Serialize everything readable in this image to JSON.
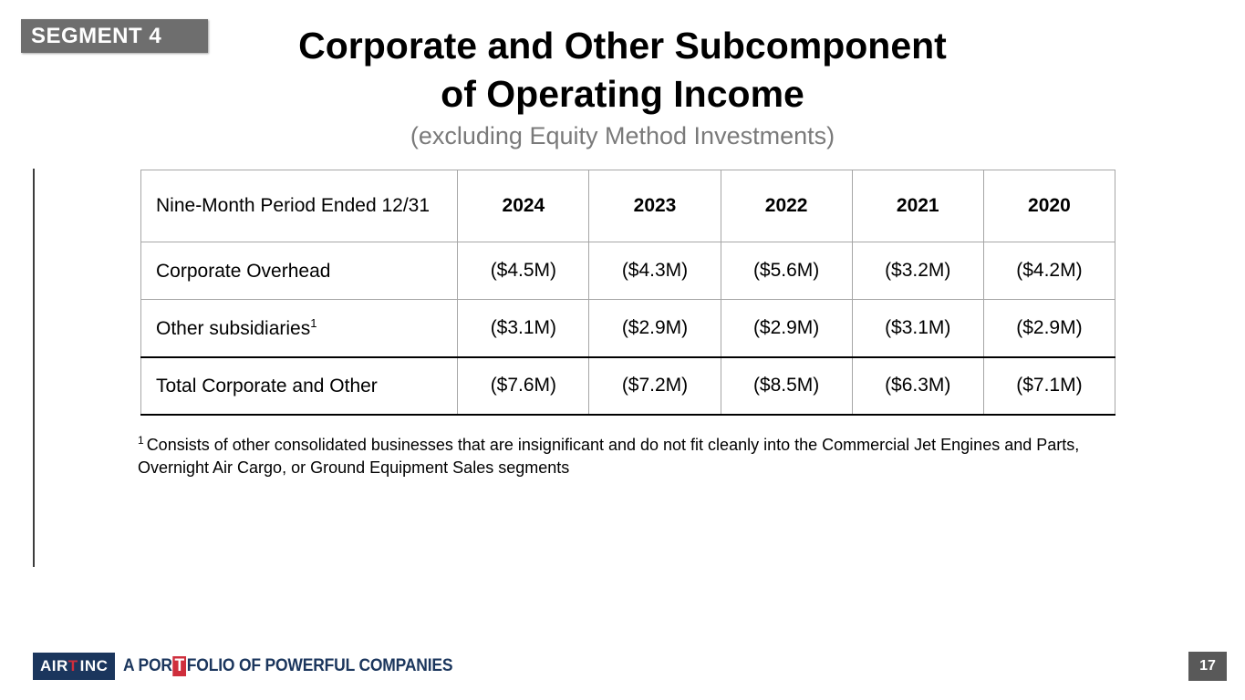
{
  "slide": {
    "badge": "SEGMENT 4",
    "title_line1": "Corporate and Other Subcomponent",
    "title_line2": "of Operating Income",
    "subtitle": "(excluding Equity Method Investments)"
  },
  "table": {
    "header": {
      "label": "Nine-Month Period Ended 12/31",
      "years": [
        "2024",
        "2023",
        "2022",
        "2021",
        "2020"
      ]
    },
    "rows": [
      {
        "label": "Corporate Overhead",
        "sup": "",
        "values": [
          "($4.5M)",
          "($4.3M)",
          "($5.6M)",
          "($3.2M)",
          "($4.2M)"
        ]
      },
      {
        "label": "Other subsidiaries",
        "sup": "1",
        "values": [
          "($3.1M)",
          "($2.9M)",
          "($2.9M)",
          "($3.1M)",
          "($2.9M)"
        ]
      },
      {
        "label": "Total Corporate and Other",
        "sup": "",
        "values": [
          "($7.6M)",
          "($7.2M)",
          "($8.5M)",
          "($6.3M)",
          "($7.1M)"
        ]
      }
    ]
  },
  "footnote": {
    "marker": "1",
    "text": "Consists of other consolidated businesses that are insignificant and do not fit cleanly into the Commercial Jet Engines and Parts, Overnight Air Cargo, or Ground Equipment Sales segments"
  },
  "footer": {
    "logo": {
      "part1": "AIR",
      "part2": "T",
      "part3": "INC"
    },
    "tagline": {
      "part1": "A POR",
      "part2": "T",
      "part3": "FOLIO OF POWERFUL COMPANIES"
    },
    "page_number": "17"
  },
  "colors": {
    "badge_bg": "#6e6e6e",
    "subtitle_gray": "#7a7a7a",
    "navy": "#1b365d",
    "red": "#cf2e3c",
    "page_box_bg": "#595959",
    "table_border": "#a6a6a6",
    "table_border_heavy": "#000000"
  }
}
